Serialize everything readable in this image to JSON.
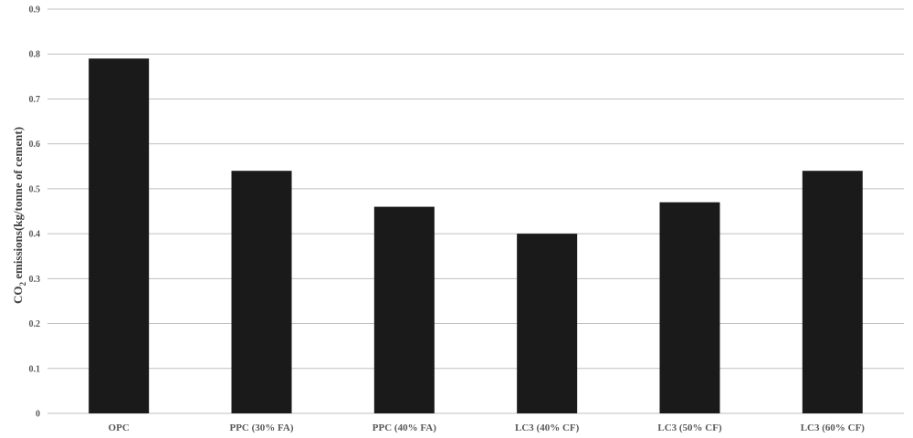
{
  "chart_data": {
    "type": "bar",
    "categories": [
      "OPC",
      "PPC (30% FA)",
      "PPC (40% FA)",
      "LC3 (40% CF)",
      "LC3 (50% CF)",
      "LC3 (60% CF)"
    ],
    "values": [
      0.79,
      0.54,
      0.46,
      0.4,
      0.47,
      0.54
    ],
    "ylabel": {
      "main": "CO",
      "subscript": "2",
      "rest": " emissions(kg/tonne of cement)"
    },
    "ylim": [
      0,
      0.9
    ],
    "yticks": [
      "0",
      "0.1",
      "0.2",
      "0.3",
      "0.4",
      "0.5",
      "0.6",
      "0.7",
      "0.8",
      "0.9"
    ],
    "grid": true,
    "bar_color": "#1a1a1a",
    "grid_color": "#bfbfbf"
  }
}
